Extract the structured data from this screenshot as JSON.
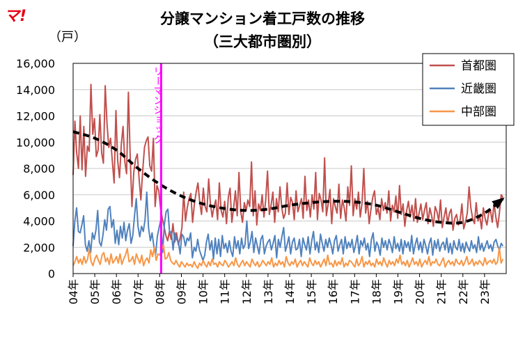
{
  "logo_text": "マ!",
  "chart_data": {
    "type": "line",
    "title": "分譲マンション着工戸数の推移",
    "subtitle": "（三大都市圏別）",
    "ylabel": "（戸）",
    "ylim": [
      0,
      16000
    ],
    "y_ticks": [
      0,
      2000,
      4000,
      6000,
      8000,
      10000,
      12000,
      14000,
      16000
    ],
    "y_tick_labels": [
      "0",
      "2,000",
      "4,000",
      "6,000",
      "8,000",
      "10,000",
      "12,000",
      "14,000",
      "16,000"
    ],
    "x_tick_labels": [
      "04年",
      "05年",
      "06年",
      "07年",
      "08年",
      "09年",
      "10年",
      "11年",
      "12年",
      "13年",
      "14年",
      "15年",
      "16年",
      "17年",
      "18年",
      "19年",
      "20年",
      "21年",
      "22年",
      "23年"
    ],
    "x_start_year": 2004,
    "x_end_year": 2024,
    "grid": true,
    "legend_position": "top-right",
    "annotation": {
      "text": "リーマンショック",
      "year": 2008.0,
      "color": "#ff00ff"
    },
    "series": [
      {
        "name": "首都圏",
        "color": "#c0504d",
        "values": [
          7500,
          11600,
          9200,
          8000,
          12000,
          7900,
          11200,
          7400,
          9700,
          9300,
          14400,
          10600,
          11800,
          8900,
          9400,
          12100,
          9200,
          8400,
          14300,
          11400,
          9600,
          10300,
          8500,
          6900,
          12400,
          8600,
          7300,
          9800,
          11200,
          8500,
          7600,
          13800,
          8900,
          5100,
          7700,
          8700,
          9100,
          7200,
          5600,
          7800,
          9600,
          10100,
          10400,
          8200,
          7800,
          10300,
          5100,
          6700,
          6300,
          5000,
          4200,
          3600,
          2900,
          2500,
          3200,
          2600,
          3800,
          2400,
          3100,
          2200,
          2700,
          3500,
          6200,
          4000,
          5000,
          5700,
          6100,
          3900,
          5300,
          6200,
          6900,
          5400,
          4500,
          6500,
          5100,
          4700,
          7200,
          5300,
          4300,
          5100,
          5600,
          4100,
          6900,
          4800,
          4300,
          5500,
          3800,
          5800,
          6500,
          3900,
          5000,
          6300,
          4400,
          7700,
          4700,
          3900,
          5400,
          4800,
          5600,
          5100,
          8500,
          4400,
          6300,
          3700,
          5300,
          4800,
          6000,
          4300,
          5600,
          7800,
          4500,
          5200,
          6200,
          3900,
          5700,
          4700,
          6600,
          5000,
          4200,
          4600,
          6900,
          4500,
          5800,
          5400,
          4100,
          6300,
          4700,
          5200,
          5700,
          4200,
          7400,
          4800,
          5600,
          4300,
          6000,
          4900,
          7700,
          4100,
          6100,
          5600,
          4700,
          8800,
          4400,
          5300,
          6400,
          3800,
          5700,
          5100,
          4600,
          6800,
          4200,
          5600,
          5000,
          4000,
          6600,
          5200,
          8200,
          4400,
          5700,
          4900,
          6200,
          4300,
          5400,
          8000,
          4600,
          5500,
          3800,
          4900,
          5800,
          6300,
          4500,
          5000,
          4100,
          5700,
          4800,
          5400,
          4600,
          6300,
          4000,
          5200,
          4700,
          5900,
          4200,
          6700,
          4500,
          5300,
          3600,
          4800,
          5500,
          4300,
          5200,
          4000,
          5700,
          3900,
          4600,
          5300,
          4100,
          4800,
          5400,
          3800,
          5000,
          4400,
          3600,
          5100,
          4700,
          4000,
          5600,
          3500,
          4300,
          5000,
          3800,
          4600,
          4900,
          3300,
          4200,
          4500,
          3700,
          4100,
          5300,
          3400,
          3900,
          4600,
          6600,
          5000,
          4200,
          3800,
          5400,
          4000,
          4400,
          3400,
          5000,
          4200,
          3700,
          4600,
          4800,
          3900,
          5400,
          4300,
          3500,
          4600,
          6000,
          5800
        ]
      },
      {
        "name": "近畿圏",
        "color": "#4f81bd",
        "values": [
          2100,
          4000,
          5000,
          3200,
          3100,
          3700,
          4400,
          2200,
          1700,
          2500,
          1600,
          3100,
          2600,
          3300,
          4800,
          2400,
          2100,
          2900,
          4100,
          3300,
          4900,
          5100,
          3500,
          4100,
          2300,
          3300,
          2200,
          3600,
          2700,
          3900,
          2500,
          3300,
          3800,
          2300,
          2900,
          4400,
          5700,
          3600,
          2800,
          3600,
          3200,
          4100,
          6200,
          3500,
          2500,
          3100,
          2100,
          1400,
          2800,
          3500,
          4100,
          1600,
          3700,
          4700,
          4900,
          3100,
          3200,
          1800,
          3100,
          2600,
          2400,
          1500,
          3000,
          2800,
          2100,
          2700,
          2500,
          3100,
          1200,
          2000,
          1700,
          2600,
          1800,
          1400,
          1000,
          1400,
          2400,
          3000,
          1800,
          2500,
          1100,
          2700,
          1500,
          2600,
          1300,
          2900,
          1900,
          2300,
          1600,
          2500,
          1700,
          1300,
          2800,
          1900,
          2500,
          1500,
          2700,
          1900,
          2200,
          4000,
          1900,
          2400,
          3200,
          1600,
          2700,
          2100,
          1500,
          2600,
          2900,
          1500,
          2100,
          2400,
          2600,
          1800,
          2300,
          2900,
          1200,
          2600,
          2000,
          2800,
          3500,
          1700,
          2200,
          2800,
          1500,
          2400,
          2700,
          1800,
          1900,
          2600,
          1300,
          2700,
          2200,
          1800,
          2800,
          1500,
          2500,
          3200,
          1800,
          2400,
          1600,
          3000,
          2300,
          1700,
          2600,
          2000,
          2700,
          2200,
          1500,
          2500,
          2900,
          1700,
          2200,
          2600,
          1500,
          2800,
          1900,
          2400,
          2000,
          2600,
          1600,
          2200,
          2900,
          1500,
          2500,
          2100,
          2700,
          1800,
          2300,
          1300,
          2600,
          3100,
          1700,
          2400,
          2100,
          1400,
          2700,
          2000,
          2500,
          1800,
          2600,
          2200,
          1600,
          2800,
          1900,
          2300,
          1700,
          2600,
          1500,
          2500,
          2000,
          2400,
          1700,
          2900,
          1500,
          2200,
          2700,
          1800,
          2400,
          1600,
          2600,
          2100,
          1500,
          2300,
          2700,
          1400,
          2500,
          1900,
          2600,
          1700,
          2200,
          2400,
          1800,
          2700,
          1600,
          2300,
          1500,
          2500,
          2000,
          1800,
          2600,
          1700,
          2300,
          1600,
          2400,
          2000,
          1700,
          2500,
          1900,
          2200,
          1600,
          2800,
          1800,
          2300,
          1700,
          2100,
          2500,
          1900,
          2200,
          1700,
          2400,
          2600,
          2100,
          1800,
          2300,
          2100
        ]
      },
      {
        "name": "中部圏",
        "color": "#f79646",
        "values": [
          600,
          900,
          1300,
          800,
          1100,
          700,
          1300,
          800,
          1100,
          1900,
          900,
          600,
          1100,
          1400,
          1000,
          700,
          1400,
          1600,
          900,
          1200,
          700,
          1500,
          800,
          1000,
          1300,
          800,
          1500,
          700,
          1100,
          1400,
          1900,
          900,
          1000,
          1300,
          700,
          1500,
          1100,
          800,
          1400,
          600,
          1000,
          1200,
          800,
          1800,
          1300,
          2000,
          1000,
          1500,
          1400,
          1800,
          2200,
          1100,
          1200,
          1600,
          1000,
          800,
          700,
          1000,
          700,
          500,
          900,
          700,
          500,
          800,
          600,
          700,
          500,
          900,
          600,
          400,
          800,
          600,
          1000,
          700,
          500,
          900,
          600,
          1100,
          700,
          800,
          500,
          900,
          700,
          600,
          1000,
          800,
          500,
          700,
          900,
          600,
          1200,
          700,
          500,
          800,
          1000,
          600,
          900,
          700,
          500,
          1100,
          800,
          600,
          900,
          500,
          700,
          1000,
          800,
          600,
          900,
          700,
          1200,
          500,
          800,
          600,
          1000,
          700,
          900,
          500,
          1300,
          800,
          600,
          900,
          700,
          1100,
          500,
          800,
          1000,
          600,
          900,
          700,
          500,
          1200,
          800,
          600,
          1000,
          700,
          900,
          500,
          800,
          1100,
          600,
          1400,
          700,
          800,
          500,
          1000,
          600,
          900,
          700,
          1200,
          500,
          800,
          600,
          1000,
          900,
          700,
          500,
          1100,
          600,
          800,
          1300,
          500,
          900,
          700,
          1000,
          600,
          800,
          500,
          1100,
          700,
          900,
          600,
          1200,
          800,
          500,
          1000,
          700,
          900,
          600,
          1100,
          800,
          1400,
          700,
          900,
          600,
          1000,
          500,
          800,
          1200,
          700,
          900,
          600,
          1100,
          500,
          800,
          1000,
          700,
          1300,
          600,
          900,
          800,
          1100,
          700,
          600,
          900,
          1200,
          500,
          800,
          1000,
          700,
          900,
          600,
          1100,
          800,
          700,
          1000,
          600,
          900,
          1300,
          700,
          800,
          1100,
          600,
          900,
          700,
          1000,
          800,
          600,
          1200,
          700,
          900,
          1000,
          800,
          1100,
          700,
          900,
          2000,
          800,
          1100
        ]
      }
    ],
    "trend": {
      "color": "#000000",
      "points": [
        [
          2004.0,
          10800
        ],
        [
          2005.0,
          10300
        ],
        [
          2006.0,
          9400
        ],
        [
          2007.0,
          8000
        ],
        [
          2008.0,
          6800
        ],
        [
          2009.0,
          5900
        ],
        [
          2010.0,
          5300
        ],
        [
          2011.0,
          4950
        ],
        [
          2012.0,
          4800
        ],
        [
          2013.0,
          4900
        ],
        [
          2014.0,
          5200
        ],
        [
          2015.0,
          5400
        ],
        [
          2016.0,
          5500
        ],
        [
          2017.0,
          5450
        ],
        [
          2018.0,
          5200
        ],
        [
          2019.0,
          4700
        ],
        [
          2020.0,
          4200
        ],
        [
          2021.0,
          3900
        ],
        [
          2022.0,
          3900
        ],
        [
          2023.0,
          4600
        ],
        [
          2023.85,
          5700
        ]
      ]
    }
  }
}
